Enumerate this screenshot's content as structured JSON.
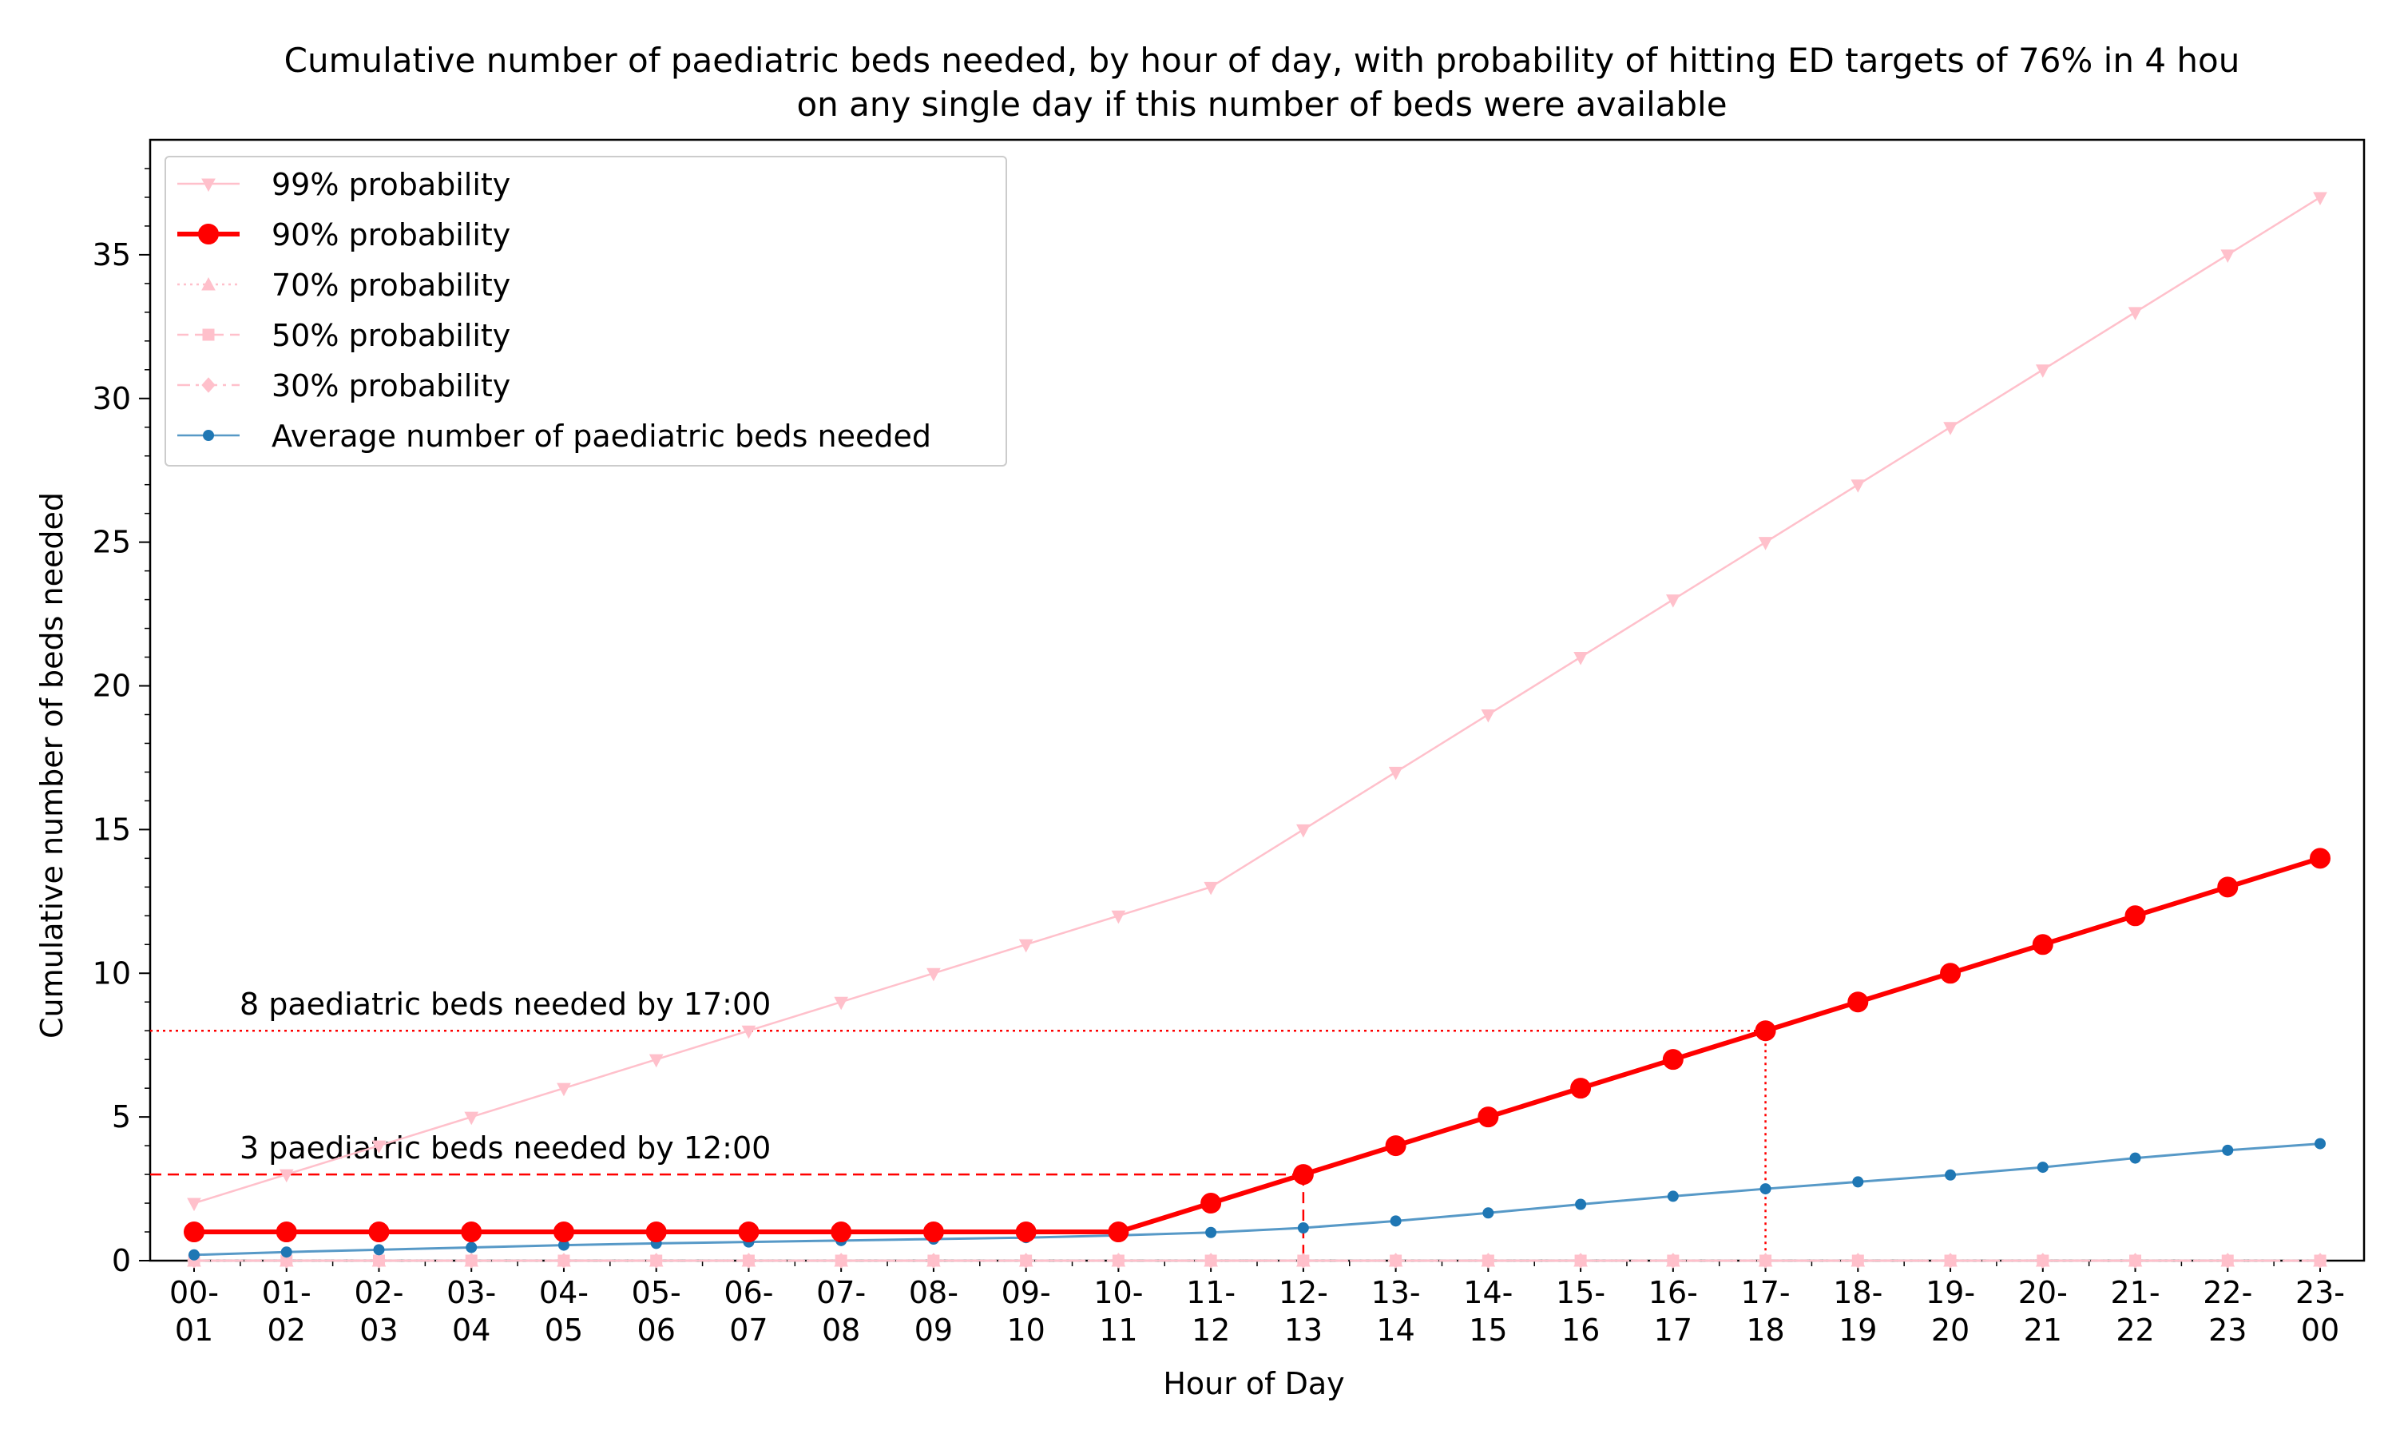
{
  "chart_data": {
    "type": "line",
    "title": "Cumulative number of paediatric beds needed, by hour of day, with probability of hitting ED targets of 76% in 4 hou",
    "subtitle": "on any single day if this number of beds were available",
    "xlabel": "Hour of Day",
    "ylabel": "Cumulative number of beds needed",
    "ylim": [
      0,
      39
    ],
    "yticks": [
      0,
      5,
      10,
      15,
      20,
      25,
      30,
      35
    ],
    "grid": false,
    "legend_position": "top-left",
    "categories": [
      [
        "00-",
        "01"
      ],
      [
        "01-",
        "02"
      ],
      [
        "02-",
        "03"
      ],
      [
        "03-",
        "04"
      ],
      [
        "04-",
        "05"
      ],
      [
        "05-",
        "06"
      ],
      [
        "06-",
        "07"
      ],
      [
        "07-",
        "08"
      ],
      [
        "08-",
        "09"
      ],
      [
        "09-",
        "10"
      ],
      [
        "10-",
        "11"
      ],
      [
        "11-",
        "12"
      ],
      [
        "12-",
        "13"
      ],
      [
        "13-",
        "14"
      ],
      [
        "14-",
        "15"
      ],
      [
        "15-",
        "16"
      ],
      [
        "16-",
        "17"
      ],
      [
        "17-",
        "18"
      ],
      [
        "18-",
        "19"
      ],
      [
        "19-",
        "20"
      ],
      [
        "20-",
        "21"
      ],
      [
        "21-",
        "22"
      ],
      [
        "22-",
        "23"
      ],
      [
        "23-",
        "00"
      ]
    ],
    "series": [
      {
        "name": "99% probability",
        "color": "#ffc0cb",
        "marker": "triangle-down",
        "dash": "solid",
        "highlight": false,
        "values": [
          2,
          3,
          4,
          5,
          6,
          7,
          8,
          9,
          10,
          11,
          12,
          13,
          15,
          17,
          19,
          21,
          23,
          25,
          27,
          29,
          31,
          33,
          35,
          37
        ]
      },
      {
        "name": "90% probability",
        "color": "#ff0000",
        "marker": "circle",
        "dash": "solid",
        "highlight": true,
        "values": [
          1,
          1,
          1,
          1,
          1,
          1,
          1,
          1,
          1,
          1,
          1,
          2,
          3,
          4,
          5,
          6,
          7,
          8,
          9,
          10,
          11,
          12,
          13,
          14
        ]
      },
      {
        "name": "70% probability",
        "color": "#ffc0cb",
        "marker": "triangle-up",
        "dash": "dotted",
        "highlight": false,
        "values": [
          0,
          0,
          0,
          0,
          0,
          0,
          0,
          0,
          0,
          0,
          0,
          0,
          0,
          0,
          0,
          0,
          0,
          0,
          0,
          0,
          0,
          0,
          0,
          0
        ]
      },
      {
        "name": "50% probability",
        "color": "#ffc0cb",
        "marker": "square",
        "dash": "dashed",
        "highlight": false,
        "values": [
          0,
          0,
          0,
          0,
          0,
          0,
          0,
          0,
          0,
          0,
          0,
          0,
          0,
          0,
          0,
          0,
          0,
          0,
          0,
          0,
          0,
          0,
          0,
          0
        ]
      },
      {
        "name": "30% probability",
        "color": "#ffc0cb",
        "marker": "diamond",
        "dash": "dashdot",
        "highlight": false,
        "values": [
          0,
          0,
          0,
          0,
          0,
          0,
          0,
          0,
          0,
          0,
          0,
          0,
          0,
          0,
          0,
          0,
          0,
          0,
          0,
          0,
          0,
          0,
          0,
          0
        ]
      },
      {
        "name": "Average number of paediatric beds needed",
        "color": "#1f77b4",
        "marker": "small-circle",
        "dash": "solid",
        "highlight": false,
        "values": [
          0.2,
          0.3,
          0.38,
          0.46,
          0.54,
          0.6,
          0.65,
          0.7,
          0.75,
          0.8,
          0.88,
          0.98,
          1.14,
          1.38,
          1.66,
          1.96,
          2.24,
          2.5,
          2.74,
          2.98,
          3.25,
          3.57,
          3.84,
          4.07
        ]
      }
    ],
    "annotations": [
      {
        "text": "8 paediatric beds needed by 17:00",
        "value": 8,
        "category_index": 17,
        "style": "dotted",
        "color": "#ff0000"
      },
      {
        "text": "3 paediatric beds needed by 12:00",
        "value": 3,
        "category_index": 12,
        "style": "dashed",
        "color": "#ff0000"
      }
    ]
  }
}
